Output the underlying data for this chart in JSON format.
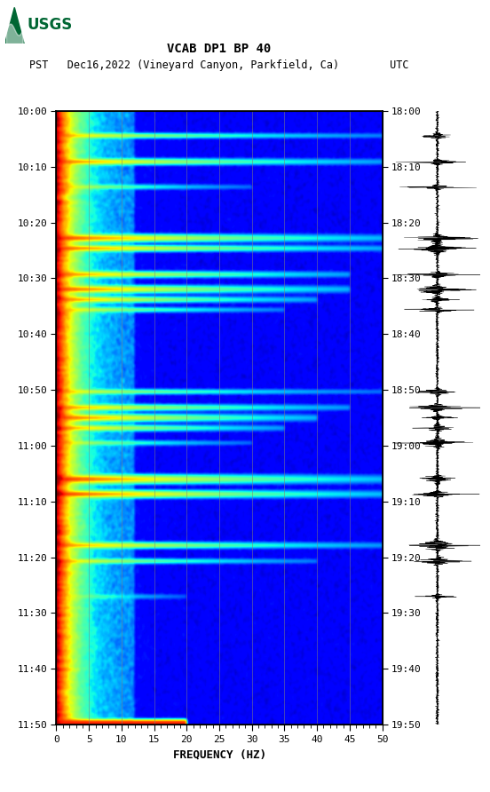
{
  "title_line1": "VCAB DP1 BP 40",
  "title_line2": "PST   Dec16,2022 (Vineyard Canyon, Parkfield, Ca)        UTC",
  "xlabel": "FREQUENCY (HZ)",
  "freq_min": 0,
  "freq_max": 50,
  "freq_ticks": [
    0,
    5,
    10,
    15,
    20,
    25,
    30,
    35,
    40,
    45,
    50
  ],
  "time_labels_left": [
    "10:00",
    "10:10",
    "10:20",
    "10:30",
    "10:40",
    "10:50",
    "11:00",
    "11:10",
    "11:20",
    "11:30",
    "11:40",
    "11:50"
  ],
  "time_labels_right": [
    "18:00",
    "18:10",
    "18:20",
    "18:30",
    "18:40",
    "18:50",
    "19:00",
    "19:10",
    "19:20",
    "19:30",
    "19:40",
    "19:50"
  ],
  "n_time_steps": 660,
  "n_freq_steps": 250,
  "vertical_grid_freqs": [
    5,
    10,
    15,
    20,
    25,
    30,
    35,
    40,
    45
  ],
  "grid_color": "#808080",
  "background_color": "#ffffff",
  "colormap": "jet",
  "usgs_green": "#006633"
}
